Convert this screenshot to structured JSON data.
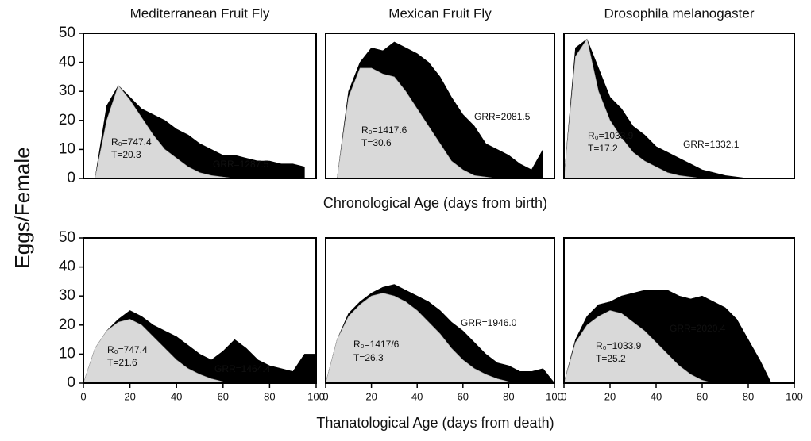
{
  "y_label": "Eggs/Female",
  "row_labels": [
    "Chronological Age (days from birth)",
    "Thanatological Age (days from death)"
  ],
  "chart_data": [
    {
      "type": "area",
      "title": "Mediterranean Fruit Fly",
      "x": [
        0,
        5,
        10,
        15,
        20,
        25,
        30,
        35,
        40,
        45,
        50,
        55,
        60,
        65,
        70,
        75,
        80,
        85,
        90,
        95
      ],
      "series": [
        {
          "color": "#000000",
          "values": [
            0,
            0,
            25,
            32,
            28,
            24,
            22,
            20,
            17,
            15,
            12,
            10,
            8,
            8,
            7,
            6,
            6,
            5,
            5,
            4
          ]
        },
        {
          "color": "#d9d9d9",
          "values": [
            0,
            0,
            20,
            32,
            27,
            21,
            15,
            10,
            7,
            4,
            2,
            1,
            0.5,
            0,
            0,
            0,
            0,
            0,
            0,
            0
          ]
        }
      ],
      "xlim": [
        0,
        100
      ],
      "ylim": [
        0,
        50
      ],
      "yticks": [
        0,
        10,
        20,
        30,
        40,
        50
      ],
      "annotations": [
        "R₀=747.4",
        "T=20.3",
        "GRR=1287.5"
      ]
    },
    {
      "type": "area",
      "title": "Mexican Fruit Fly",
      "x": [
        0,
        5,
        10,
        15,
        20,
        25,
        30,
        35,
        40,
        45,
        50,
        55,
        60,
        65,
        70,
        75,
        80,
        85,
        90,
        95
      ],
      "series": [
        {
          "color": "#000000",
          "values": [
            0,
            0,
            30,
            40,
            45,
            44,
            47,
            45,
            43,
            40,
            35,
            28,
            22,
            18,
            12,
            10,
            8,
            5,
            3,
            10
          ]
        },
        {
          "color": "#d9d9d9",
          "values": [
            0,
            0,
            28,
            38,
            38,
            36,
            35,
            30,
            24,
            18,
            12,
            6,
            3,
            1,
            0.5,
            0,
            0,
            0,
            0,
            0
          ]
        }
      ],
      "xlim": [
        0,
        100
      ],
      "ylim": [
        0,
        50
      ],
      "annotations": [
        "R₀=1417.6",
        "T=30.6",
        "GRR=2081.5"
      ]
    },
    {
      "type": "area",
      "title": "Drosophila melanogaster",
      "x": [
        0,
        5,
        10,
        15,
        20,
        25,
        30,
        35,
        40,
        45,
        50,
        55,
        60,
        65,
        70,
        75,
        80
      ],
      "series": [
        {
          "color": "#000000",
          "values": [
            0,
            45,
            48,
            38,
            28,
            24,
            18,
            15,
            11,
            9,
            7,
            5,
            3,
            2,
            1,
            0.5,
            0
          ]
        },
        {
          "color": "#d9d9d9",
          "values": [
            0,
            42,
            48,
            30,
            20,
            14,
            9,
            6,
            4,
            2,
            1,
            0.5,
            0,
            0,
            0,
            0,
            0
          ]
        }
      ],
      "xlim": [
        0,
        100
      ],
      "ylim": [
        0,
        50
      ],
      "annotations": [
        "R₀=1033.9",
        "T=17.2",
        "GRR=1332.1"
      ]
    },
    {
      "type": "area",
      "x": [
        0,
        5,
        10,
        15,
        20,
        25,
        30,
        35,
        40,
        45,
        50,
        55,
        60,
        65,
        70,
        75,
        80,
        85,
        90,
        95,
        100
      ],
      "series": [
        {
          "color": "#000000",
          "values": [
            0,
            12,
            18,
            22,
            25,
            23,
            20,
            18,
            16,
            13,
            10,
            8,
            11,
            15,
            12,
            8,
            6,
            5,
            4,
            10,
            10
          ]
        },
        {
          "color": "#d9d9d9",
          "values": [
            0,
            12,
            18,
            21,
            22,
            20,
            16,
            12,
            8,
            5,
            3,
            1.5,
            0.5,
            0,
            0,
            0,
            0,
            0,
            0,
            0,
            0
          ]
        }
      ],
      "xlim": [
        0,
        100
      ],
      "ylim": [
        0,
        50
      ],
      "yticks": [
        0,
        10,
        20,
        30,
        40,
        50
      ],
      "xticks": [
        0,
        20,
        40,
        60,
        80,
        100
      ],
      "annotations": [
        "R₀=747.4",
        "T=21.6",
        "GRR=1464.4"
      ]
    },
    {
      "type": "area",
      "x": [
        0,
        5,
        10,
        15,
        20,
        25,
        30,
        35,
        40,
        45,
        50,
        55,
        60,
        65,
        70,
        75,
        80,
        85,
        90,
        95,
        100
      ],
      "series": [
        {
          "color": "#000000",
          "values": [
            0,
            15,
            24,
            28,
            31,
            33,
            34,
            32,
            30,
            28,
            25,
            21,
            18,
            14,
            10,
            7,
            6,
            4,
            4,
            5,
            0
          ]
        },
        {
          "color": "#d9d9d9",
          "values": [
            0,
            15,
            23,
            27,
            30,
            31,
            30,
            28,
            25,
            21,
            17,
            12,
            8,
            5,
            3,
            1.5,
            0.5,
            0,
            0,
            0,
            0
          ]
        }
      ],
      "xlim": [
        0,
        100
      ],
      "ylim": [
        0,
        50
      ],
      "xticks": [
        0,
        20,
        40,
        60,
        80,
        100
      ],
      "annotations": [
        "R₀=1417/6",
        "T=26.3",
        "GRR=1946.0"
      ]
    },
    {
      "type": "area",
      "x": [
        0,
        5,
        10,
        15,
        20,
        25,
        30,
        35,
        40,
        45,
        50,
        55,
        60,
        65,
        70,
        75,
        80,
        85,
        90
      ],
      "series": [
        {
          "color": "#000000",
          "values": [
            0,
            15,
            23,
            27,
            28,
            30,
            31,
            32,
            32,
            32,
            30,
            29,
            30,
            28,
            26,
            22,
            15,
            8,
            0
          ]
        },
        {
          "color": "#d9d9d9",
          "values": [
            0,
            14,
            20,
            23,
            25,
            24,
            21,
            18,
            14,
            10,
            6,
            3,
            1,
            0,
            0,
            0,
            0,
            0,
            0
          ]
        }
      ],
      "xlim": [
        0,
        100
      ],
      "ylim": [
        0,
        50
      ],
      "xticks": [
        0,
        20,
        40,
        60,
        80,
        100
      ],
      "annotations": [
        "R₀=1033.9",
        "T=25.2",
        "GRR=2020.4"
      ]
    }
  ]
}
